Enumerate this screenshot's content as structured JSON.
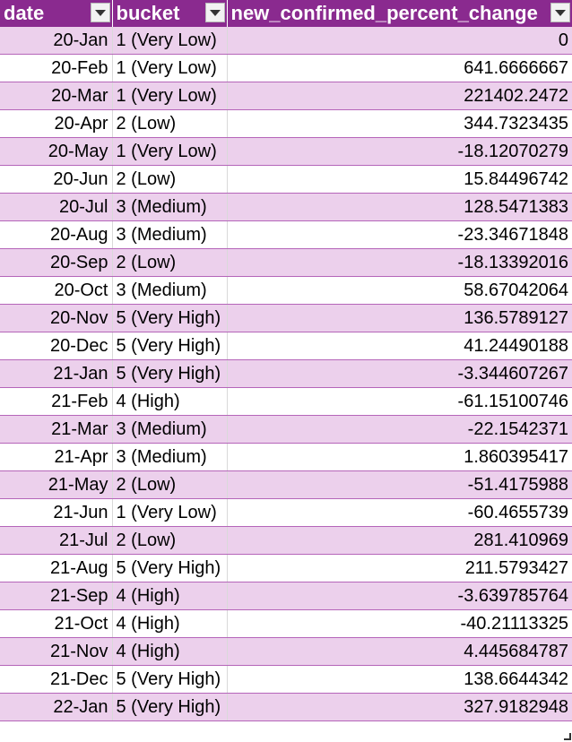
{
  "colors": {
    "header_bg": "#8a2a8f",
    "band_bg": "#ecd0ec",
    "row_border": "#b565b9"
  },
  "header": {
    "columns": [
      "date",
      "bucket",
      "new_confirmed_percent_change"
    ],
    "filter_icon": "dropdown-arrow-icon"
  },
  "rows": [
    {
      "date": "20-Jan",
      "bucket": "1 (Very Low)",
      "value": "0"
    },
    {
      "date": "20-Feb",
      "bucket": "1 (Very Low)",
      "value": "641.6666667"
    },
    {
      "date": "20-Mar",
      "bucket": "1 (Very Low)",
      "value": "221402.2472"
    },
    {
      "date": "20-Apr",
      "bucket": "2 (Low)",
      "value": "344.7323435"
    },
    {
      "date": "20-May",
      "bucket": "1 (Very Low)",
      "value": "-18.12070279"
    },
    {
      "date": "20-Jun",
      "bucket": "2 (Low)",
      "value": "15.84496742"
    },
    {
      "date": "20-Jul",
      "bucket": "3 (Medium)",
      "value": "128.5471383"
    },
    {
      "date": "20-Aug",
      "bucket": "3 (Medium)",
      "value": "-23.34671848"
    },
    {
      "date": "20-Sep",
      "bucket": "2 (Low)",
      "value": "-18.13392016"
    },
    {
      "date": "20-Oct",
      "bucket": "3 (Medium)",
      "value": "58.67042064"
    },
    {
      "date": "20-Nov",
      "bucket": "5 (Very High)",
      "value": "136.5789127"
    },
    {
      "date": "20-Dec",
      "bucket": "5 (Very High)",
      "value": "41.24490188"
    },
    {
      "date": "21-Jan",
      "bucket": "5 (Very High)",
      "value": "-3.344607267"
    },
    {
      "date": "21-Feb",
      "bucket": "4 (High)",
      "value": "-61.15100746"
    },
    {
      "date": "21-Mar",
      "bucket": "3 (Medium)",
      "value": "-22.1542371"
    },
    {
      "date": "21-Apr",
      "bucket": "3 (Medium)",
      "value": "1.860395417"
    },
    {
      "date": "21-May",
      "bucket": "2 (Low)",
      "value": "-51.4175988"
    },
    {
      "date": "21-Jun",
      "bucket": "1 (Very Low)",
      "value": "-60.4655739"
    },
    {
      "date": "21-Jul",
      "bucket": "2 (Low)",
      "value": "281.410969"
    },
    {
      "date": "21-Aug",
      "bucket": "5 (Very High)",
      "value": "211.5793427"
    },
    {
      "date": "21-Sep",
      "bucket": "4 (High)",
      "value": "-3.639785764"
    },
    {
      "date": "21-Oct",
      "bucket": "4 (High)",
      "value": "-40.21113325"
    },
    {
      "date": "21-Nov",
      "bucket": "4 (High)",
      "value": "4.445684787"
    },
    {
      "date": "21-Dec",
      "bucket": "5 (Very High)",
      "value": "138.6644342"
    },
    {
      "date": "22-Jan",
      "bucket": "5 (Very High)",
      "value": "327.9182948"
    }
  ]
}
